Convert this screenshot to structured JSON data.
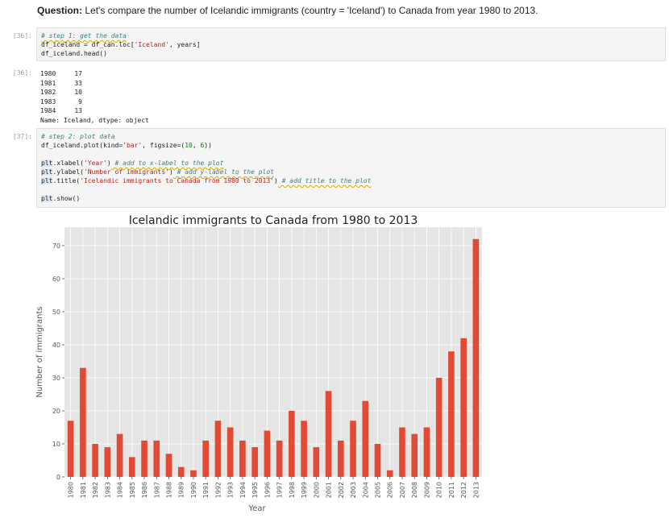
{
  "question": {
    "label": "Question:",
    "text": "Let's compare the number of Icelandic immigrants (country = 'Iceland') to Canada from year 1980 to 2013."
  },
  "cell36_in": {
    "prompt": "[36]:",
    "line1": "# step 1: get the data",
    "line2_a": "df_iceland = df_can.loc[",
    "line2_str": "'Iceland'",
    "line2_b": ", years]",
    "line3": "df_iceland.head()"
  },
  "cell36_out": {
    "prompt": "[36]:",
    "rows": [
      {
        "year": "1980",
        "value": "17"
      },
      {
        "year": "1981",
        "value": "33"
      },
      {
        "year": "1982",
        "value": "10"
      },
      {
        "year": "1983",
        "value": "9"
      },
      {
        "year": "1984",
        "value": "13"
      }
    ],
    "footer": "Name: Iceland, dtype: object"
  },
  "cell37_in": {
    "prompt": "[37]:",
    "line1": "# step 2: plot data",
    "line2_a": "df_iceland.plot(kind=",
    "line2_str": "'bar'",
    "line2_b": ", figsize=(",
    "line2_n1": "10",
    "line2_c": ", ",
    "line2_n2": "6",
    "line2_d": "))",
    "xl_a": "plt",
    "xl_b": ".xlabel(",
    "xl_str": "'Year'",
    "xl_c": ")",
    "xl_cm": " # add to x-label to the plot",
    "yl_a": "plt",
    "yl_b": ".ylabel(",
    "yl_str": "'Number of immigrants'",
    "yl_c": ")",
    "yl_cm": " # add y-label to the plot",
    "tl_a": "plt",
    "tl_b": ".title(",
    "tl_str": "'Icelandic immigrants to Canada from 1980 to 2013'",
    "tl_c": ")",
    "tl_cm": " # add title to the plot",
    "sh_a": "plt",
    "sh_b": ".show()"
  },
  "chart_data": {
    "type": "bar",
    "title": "Icelandic immigrants to Canada from 1980 to 2013",
    "xlabel": "Year",
    "ylabel": "Number of immigrants",
    "categories": [
      "1980",
      "1981",
      "1982",
      "1983",
      "1984",
      "1985",
      "1986",
      "1987",
      "1988",
      "1989",
      "1990",
      "1991",
      "1992",
      "1993",
      "1994",
      "1995",
      "1996",
      "1997",
      "1998",
      "1999",
      "2000",
      "2001",
      "2002",
      "2003",
      "2004",
      "2005",
      "2006",
      "2007",
      "2008",
      "2009",
      "2010",
      "2011",
      "2012",
      "2013"
    ],
    "values": [
      17,
      33,
      10,
      9,
      13,
      6,
      11,
      11,
      7,
      3,
      2,
      11,
      17,
      15,
      11,
      9,
      14,
      11,
      20,
      17,
      9,
      26,
      11,
      17,
      23,
      10,
      2,
      15,
      13,
      15,
      30,
      38,
      42,
      72
    ],
    "yticks": [
      0,
      10,
      20,
      30,
      40,
      50,
      60,
      70
    ],
    "ylim": [
      0,
      75.6
    ],
    "grid": true,
    "colors": {
      "bar": "#e24a33",
      "background": "#e5e5e5",
      "grid": "#ffffff",
      "text": "#555555"
    }
  }
}
